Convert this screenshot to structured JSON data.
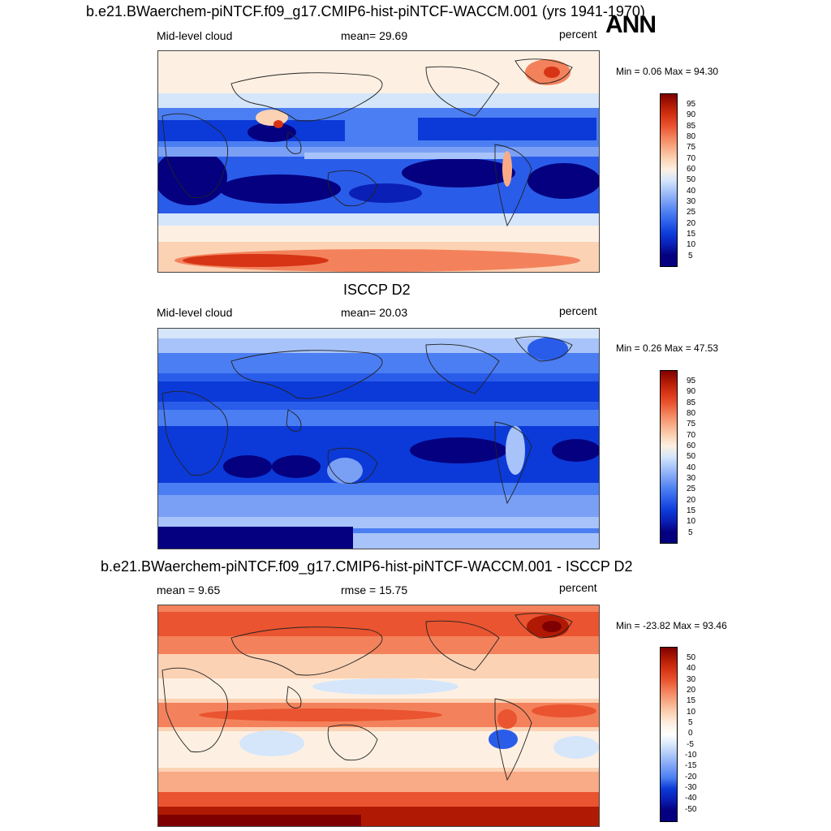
{
  "page_title": "b.e21.BWaerchem-piNTCF.f09_g17.CMIP6-hist-piNTCF-WACCM.001 (yrs 1941-1970)",
  "season": "ANN",
  "panels": [
    {
      "id": "model",
      "left_label": "Mid-level cloud",
      "mid_label": "mean=  29.69",
      "right_label": "percent",
      "minmax": "Min =   0.06 Max =  94.30",
      "colorbar_labels": [
        "95",
        "90",
        "85",
        "80",
        "75",
        "70",
        "60",
        "50",
        "40",
        "30",
        "25",
        "20",
        "15",
        "10",
        "5"
      ]
    },
    {
      "id": "obs",
      "header": "ISCCP D2",
      "left_label": "Mid-level cloud",
      "mid_label": "mean=  20.03",
      "right_label": "percent",
      "minmax": "Min =   0.26 Max =  47.53",
      "colorbar_labels": [
        "95",
        "90",
        "85",
        "80",
        "75",
        "70",
        "60",
        "50",
        "40",
        "30",
        "25",
        "20",
        "15",
        "10",
        "5"
      ]
    },
    {
      "id": "diff",
      "header": "b.e21.BWaerchem-piNTCF.f09_g17.CMIP6-hist-piNTCF-WACCM.001 - ISCCP D2",
      "left_label": "mean =   9.65",
      "mid_label": "rmse =  15.75",
      "right_label": "percent",
      "minmax": "Min = -23.82 Max =  93.46",
      "colorbar_labels": [
        "50",
        "40",
        "30",
        "20",
        "15",
        "10",
        "5",
        "0",
        "-5",
        "-10",
        "-15",
        "-20",
        "-30",
        "-40",
        "-50"
      ]
    }
  ],
  "colors": {
    "ramp": [
      "#05007f",
      "#0a1fb5",
      "#0c3ad8",
      "#2a5cea",
      "#4b7ef2",
      "#7aa0f6",
      "#a7c3f9",
      "#d5e6fb",
      "#fdf0e2",
      "#fcd2b4",
      "#f8ab86",
      "#f3825c",
      "#ea5430",
      "#d63415",
      "#b01a04",
      "#7f0000"
    ]
  }
}
